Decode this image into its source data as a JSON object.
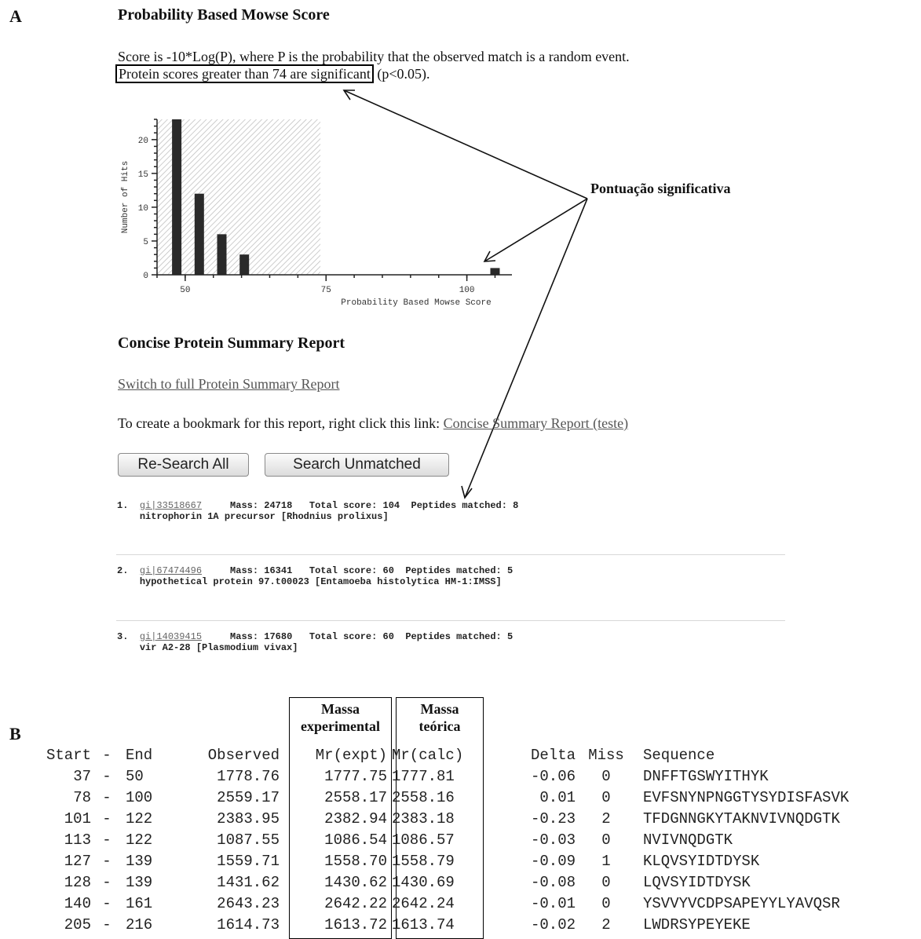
{
  "panel_a": {
    "letter": "A",
    "title": "Probability Based Mowse Score",
    "score_line": "Score is -10*Log(P), where P is the probability that the observed match is a random event.",
    "significance_boxed": "Protein scores greater than 74 are significant",
    "significance_suffix": " (p<0.05).",
    "annotation": "Pontuação significativa"
  },
  "chart_data": {
    "type": "bar",
    "xlabel": "Probability Based Mowse Score",
    "ylabel": "Number of Hits",
    "xlim": [
      45,
      108
    ],
    "ylim": [
      0,
      23
    ],
    "xticks": [
      50,
      75,
      100
    ],
    "yticks": [
      0,
      5,
      10,
      15,
      20
    ],
    "significance_threshold": 74,
    "bars": [
      {
        "x": 48.5,
        "y": 23
      },
      {
        "x": 52.5,
        "y": 12
      },
      {
        "x": 56.5,
        "y": 6
      },
      {
        "x": 60.5,
        "y": 3
      },
      {
        "x": 105,
        "y": 1
      }
    ],
    "colors": {
      "bar": "#2a2a2a",
      "shade": "#c9c9c9"
    }
  },
  "summary": {
    "title": "Concise Protein Summary Report",
    "switch_link": "Switch to full Protein Summary Report",
    "bookmark_text": "To create a bookmark for this report, right click this link: ",
    "bookmark_link": "Concise Summary Report (teste)",
    "btn_research": "Re-Search All",
    "btn_unmatched": "Search Unmatched"
  },
  "hits": [
    {
      "num": "1.",
      "acc": "gi|33518667",
      "mass_label": "Mass:",
      "mass": "24718",
      "score_label": "Total score:",
      "score": "104",
      "pep_label": "Peptides matched:",
      "peptides": "8",
      "desc": "nitrophorin 1A precursor [Rhodnius prolixus]"
    },
    {
      "num": "2.",
      "acc": "gi|67474496",
      "mass_label": "Mass:",
      "mass": "16341",
      "score_label": "Total score:",
      "score": "60",
      "pep_label": "Peptides matched:",
      "peptides": "5",
      "desc": "hypothetical protein 97.t00023 [Entamoeba histolytica HM-1:IMSS]"
    },
    {
      "num": "3.",
      "acc": "gi|14039415",
      "mass_label": "Mass:",
      "mass": "17680",
      "score_label": "Total score:",
      "score": "60",
      "pep_label": "Peptides matched:",
      "peptides": "5",
      "desc": "vir A2-28 [Plasmodium vivax]"
    }
  ],
  "panel_b": {
    "letter": "B",
    "col_label_expt": [
      "Massa",
      "experimental"
    ],
    "col_label_calc": [
      "Massa",
      "teórica"
    ],
    "headers": [
      "Start",
      "-",
      "End",
      "Observed",
      "Mr(expt)",
      "Mr(calc)",
      "Delta",
      "Miss",
      "Sequence"
    ],
    "rows": [
      [
        "37",
        "-",
        "50",
        "1778.76",
        "1777.75",
        "1777.81",
        "-0.06",
        "0",
        "DNFFTGSWYITHYK"
      ],
      [
        "78",
        "-",
        "100",
        "2559.17",
        "2558.17",
        "2558.16",
        "0.01",
        "0",
        "EVFSNYNPNGGTYSYDISFASVK"
      ],
      [
        "101",
        "-",
        "122",
        "2383.95",
        "2382.94",
        "2383.18",
        "-0.23",
        "2",
        "TFDGNNGKYTAKNVIVNQDGTK"
      ],
      [
        "113",
        "-",
        "122",
        "1087.55",
        "1086.54",
        "1086.57",
        "-0.03",
        "0",
        "NVIVNQDGTK"
      ],
      [
        "127",
        "-",
        "139",
        "1559.71",
        "1558.70",
        "1558.79",
        "-0.09",
        "1",
        "KLQVSYIDTDYSK"
      ],
      [
        "128",
        "-",
        "139",
        "1431.62",
        "1430.62",
        "1430.69",
        "-0.08",
        "0",
        "LQVSYIDTDYSK"
      ],
      [
        "140",
        "-",
        "161",
        "2643.23",
        "2642.22",
        "2642.24",
        "-0.01",
        "0",
        "YSVVYVCDPSAPEYYLYAVQSR"
      ],
      [
        "205",
        "-",
        "216",
        "1614.73",
        "1613.72",
        "1613.74",
        "-0.02",
        "2",
        "LWDRSYPEYEKE"
      ]
    ]
  }
}
